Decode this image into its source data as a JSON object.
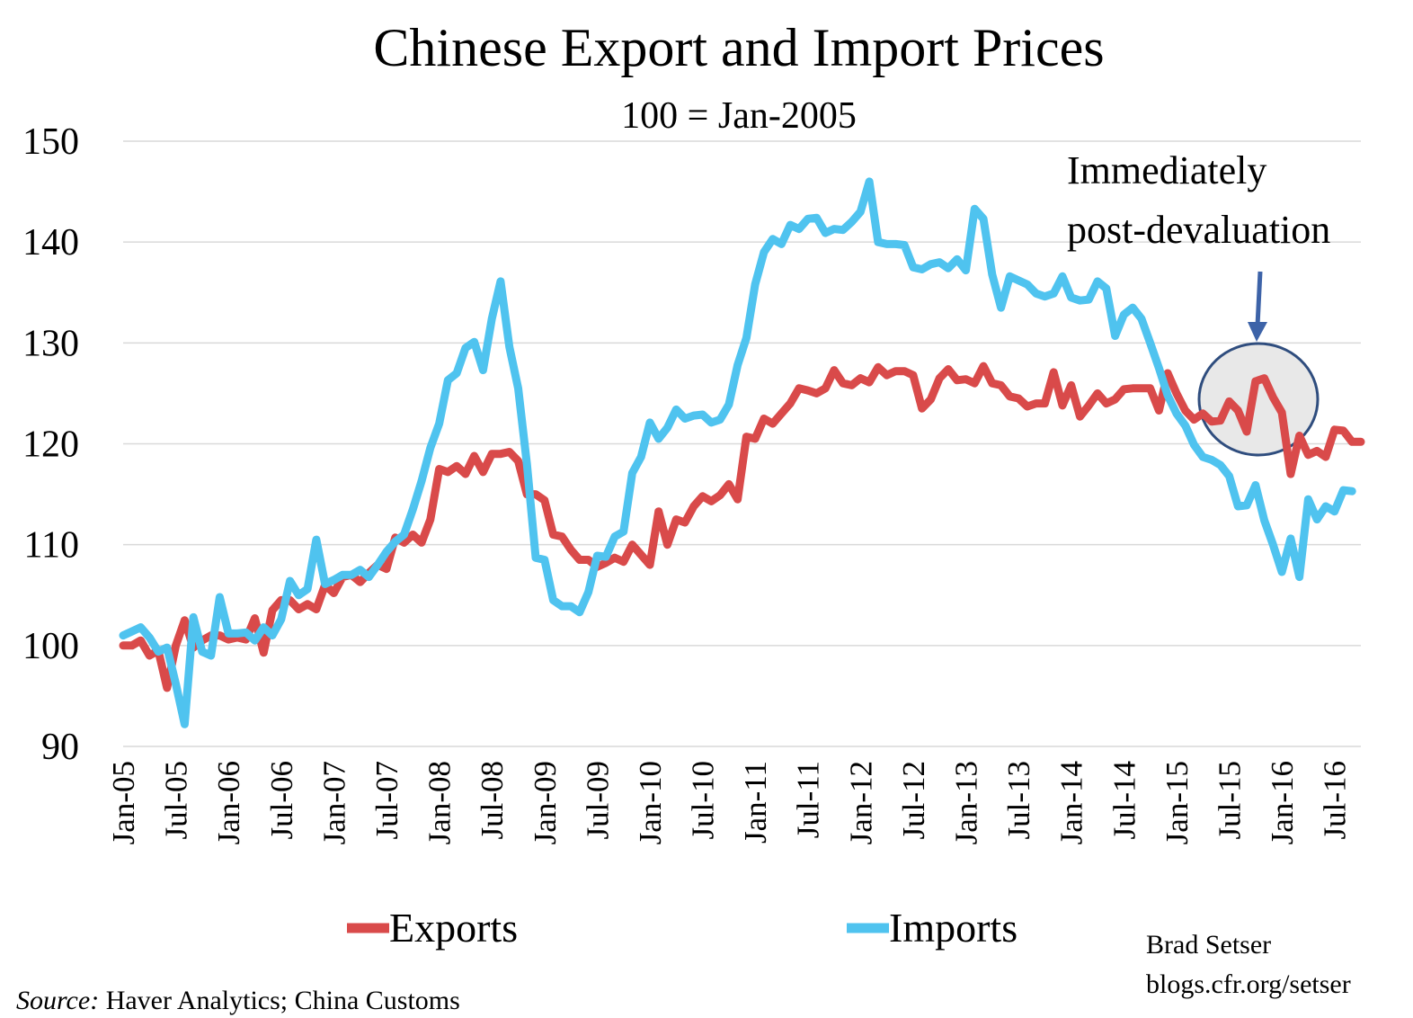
{
  "chart_data": {
    "type": "line",
    "title": "Chinese Export and Import Prices",
    "subtitle": "100 = Jan-2005",
    "xlabel": "",
    "ylabel": "",
    "ylim": [
      90,
      150
    ],
    "yticks": [
      "150",
      "140",
      "130",
      "120",
      "110",
      "100",
      "90"
    ],
    "x_ticks": [
      "Jan-05",
      "Jul-05",
      "Jan-06",
      "Jul-06",
      "Jan-07",
      "Jul-07",
      "Jan-08",
      "Jul-08",
      "Jan-09",
      "Jul-09",
      "Jan-10",
      "Jul-10",
      "Jan-11",
      "Jul-11",
      "Jan-12",
      "Jul-12",
      "Jan-13",
      "Jul-13",
      "Jan-14",
      "Jul-14",
      "Jan-15",
      "Jul-15",
      "Jan-16",
      "Jul-16"
    ],
    "x_start": "Jan-05",
    "frequency": "monthly",
    "grid": true,
    "legend_position": "bottom",
    "series": [
      {
        "name": "Exports",
        "color": "#d94a4a",
        "values": [
          100.0,
          100.0,
          100.5,
          99.0,
          99.5,
          95.8,
          100.0,
          102.5,
          99.8,
          100.5,
          101.0,
          101.0,
          100.6,
          100.8,
          100.6,
          102.7,
          99.3,
          103.5,
          104.5,
          104.5,
          103.6,
          104.1,
          103.6,
          106.0,
          105.2,
          106.8,
          107.0,
          106.3,
          107.2,
          108.0,
          107.6,
          110.7,
          110.2,
          111.0,
          110.2,
          112.5,
          117.5,
          117.2,
          117.8,
          117.0,
          118.8,
          117.2,
          119.0,
          119.0,
          119.2,
          118.3,
          115.0,
          115.0,
          114.4,
          111.0,
          110.8,
          109.5,
          108.5,
          108.5,
          107.8,
          108.2,
          108.7,
          108.3,
          110.0,
          109.0,
          108.0,
          113.3,
          110.0,
          112.5,
          112.2,
          113.8,
          114.8,
          114.3,
          114.9,
          116.0,
          114.5,
          120.7,
          120.5,
          122.5,
          122.0,
          123.0,
          124.0,
          125.5,
          125.3,
          125.0,
          125.5,
          127.3,
          126.0,
          125.8,
          126.5,
          126.1,
          127.6,
          126.8,
          127.2,
          127.2,
          126.8,
          123.5,
          124.4,
          126.5,
          127.4,
          126.3,
          126.4,
          126.0,
          127.7,
          126.0,
          125.8,
          124.7,
          124.5,
          123.7,
          124.0,
          124.0,
          127.1,
          123.8,
          125.8,
          122.7,
          123.8,
          125.0,
          124.0,
          124.4,
          125.4,
          125.5,
          125.5,
          125.5,
          123.3,
          127.0,
          125.0,
          123.3,
          122.4,
          123.0,
          122.2,
          122.3,
          124.2,
          123.3,
          121.2,
          126.2,
          126.5,
          124.6,
          123.1,
          117.0,
          120.8,
          118.9,
          119.3,
          118.7,
          121.4,
          121.3,
          120.2,
          120.2
        ]
      },
      {
        "name": "Imports",
        "color": "#4fc3ef",
        "values": [
          101.0,
          101.4,
          101.8,
          100.8,
          99.4,
          99.8,
          96.2,
          92.2,
          102.8,
          99.4,
          99.0,
          104.8,
          101.2,
          101.2,
          101.3,
          100.5,
          101.8,
          101.0,
          102.6,
          106.4,
          105.0,
          105.6,
          110.5,
          106.1,
          106.5,
          107.0,
          107.0,
          107.5,
          106.8,
          108.0,
          109.3,
          110.3,
          111.0,
          113.5,
          116.3,
          119.6,
          122.0,
          126.3,
          127.0,
          129.5,
          130.1,
          127.3,
          132.4,
          136.1,
          129.6,
          125.5,
          118.0,
          108.7,
          108.5,
          104.5,
          103.9,
          103.9,
          103.3,
          105.3,
          108.9,
          108.8,
          110.8,
          111.3,
          117.1,
          118.7,
          122.1,
          120.5,
          121.6,
          123.4,
          122.5,
          122.8,
          122.9,
          122.1,
          122.4,
          123.9,
          127.8,
          130.5,
          135.8,
          139.0,
          140.3,
          139.8,
          141.7,
          141.3,
          142.3,
          142.4,
          140.9,
          141.3,
          141.2,
          142.0,
          143.0,
          146.0,
          140.0,
          139.8,
          139.8,
          139.7,
          137.5,
          137.3,
          137.8,
          138.0,
          137.4,
          138.3,
          137.2,
          143.3,
          142.3,
          136.8,
          133.5,
          136.6,
          136.2,
          135.8,
          134.9,
          134.6,
          134.9,
          136.6,
          134.5,
          134.2,
          134.3,
          136.1,
          135.4,
          130.7,
          132.8,
          133.5,
          132.4,
          130.0,
          127.5,
          124.8,
          123.0,
          121.8,
          119.9,
          118.7,
          118.4,
          117.9,
          116.8,
          113.8,
          113.9,
          115.9,
          112.4,
          110.0,
          107.3,
          110.6,
          106.8,
          114.5,
          112.5,
          113.8,
          113.3,
          115.4,
          115.3
        ]
      }
    ],
    "annotation": {
      "line1": "Immediately",
      "line2": "post-devaluation"
    }
  },
  "credit": {
    "author": "Brad Setser",
    "url": "blogs.cfr.org/setser"
  },
  "source": {
    "label": "Source:",
    "text": " Haver Analytics; China Customs"
  }
}
